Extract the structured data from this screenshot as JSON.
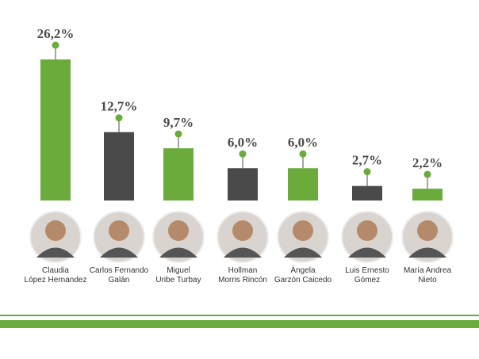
{
  "chart_data": {
    "type": "bar",
    "categories": [
      [
        "Claudia",
        "López Hernandez"
      ],
      [
        "Carlos Fernando",
        "Galán"
      ],
      [
        "Miguel",
        "Uribe Turbay"
      ],
      [
        "Hollman",
        "Morris Rincón"
      ],
      [
        "Ángela",
        "Garzón Caicedo"
      ],
      [
        "Luis Ernesto",
        "Gómez"
      ],
      [
        "María Andrea",
        "Nieto"
      ]
    ],
    "values": [
      26.2,
      12.7,
      9.7,
      6.0,
      6.0,
      2.7,
      2.2
    ],
    "value_labels": [
      "26,2%",
      "12,7%",
      "9,7%",
      "6,0%",
      "6,0%",
      "2,7%",
      "2,2%"
    ],
    "colors": [
      "#6aab3c",
      "#4a4a4a",
      "#6aab3c",
      "#4a4a4a",
      "#6aab3c",
      "#4a4a4a",
      "#6aab3c"
    ]
  }
}
